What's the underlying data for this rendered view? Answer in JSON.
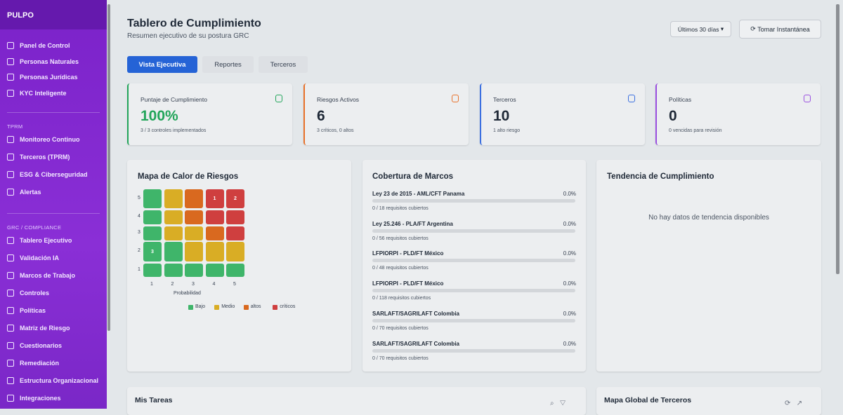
{
  "sidebar": {
    "brand": "PULPO",
    "groups": [
      {
        "items": [
          "Panel de Control",
          "Personas Naturales",
          "Personas Jurídicas",
          "KYC Inteligente"
        ]
      },
      {
        "section": "TPRM",
        "items": [
          "Monitoreo Continuo",
          "Terceros (TPRM)",
          "ESG & Ciberseguridad",
          "Alertas"
        ]
      },
      {
        "section": "GRC / COMPLIANCE",
        "items": [
          "Tablero Ejecutivo",
          "Validación IA",
          "Marcos de Trabajo",
          "Controles",
          "Políticas",
          "Matriz de Riesgo",
          "Cuestionarios",
          "Remediación",
          "Estructura Organizacional",
          "Integraciones"
        ]
      }
    ]
  },
  "header": {
    "title": "Tablero de Cumplimiento",
    "subtitle": "Resumen ejecutivo de su postura GRC",
    "period": "Últimos 30 días",
    "action": "Tomar Instantánea"
  },
  "tabs": [
    "Vista Ejecutiva",
    "Reportes",
    "Terceros"
  ],
  "kpis": [
    {
      "label": "Puntaje de Cumplimiento",
      "value": "100%",
      "note": "3 / 3 controles implementados",
      "color": "#22a55a"
    },
    {
      "label": "Riesgos Activos",
      "value": "6",
      "note": "3 críticos, 0 altos",
      "color": "#e8712a"
    },
    {
      "label": "Terceros",
      "value": "10",
      "note": "1 alto riesgo",
      "color": "#3b6fe0"
    },
    {
      "label": "Políticas",
      "value": "0",
      "note": "0 vencidas para revisión",
      "color": "#9a4fe0"
    }
  ],
  "heatmap": {
    "title": "Mapa de Calor de Riesgos",
    "rows": [
      "5",
      "4",
      "3",
      "2",
      "1"
    ],
    "cols": [
      "1",
      "2",
      "3",
      "4",
      "5"
    ],
    "x_label": "Probabilidad",
    "legend": [
      {
        "name": "Bajo",
        "color": "#3fb56a"
      },
      {
        "name": "Medio",
        "color": "#d9ad25"
      },
      {
        "name": "altos",
        "color": "#d9691f"
      },
      {
        "name": "críticos",
        "color": "#cf3f3f"
      }
    ],
    "levels": [
      [
        0,
        1,
        2,
        3,
        3
      ],
      [
        0,
        1,
        2,
        3,
        3
      ],
      [
        0,
        1,
        1,
        2,
        3
      ],
      [
        0,
        0,
        1,
        1,
        1
      ],
      [
        0,
        0,
        0,
        0,
        0
      ]
    ],
    "counts": [
      [
        null,
        null,
        null,
        "1",
        "2"
      ],
      [
        null,
        null,
        null,
        null,
        null
      ],
      [
        null,
        null,
        null,
        null,
        null
      ],
      [
        "3",
        null,
        null,
        null,
        null
      ],
      [
        null,
        null,
        null,
        null,
        null
      ]
    ]
  },
  "coverage": {
    "title": "Cobertura de Marcos",
    "items": [
      {
        "name": "Ley 23 de 2015 - AML/CFT Panama",
        "pct": "0.0%",
        "note": "0 / 18 requisitos cubiertos"
      },
      {
        "name": "Ley 25.246 - PLA/FT Argentina",
        "pct": "0.0%",
        "note": "0 / 56 requisitos cubiertos"
      },
      {
        "name": "LFPIORPI - PLD/FT México",
        "pct": "0.0%",
        "note": "0 / 48 requisitos cubiertos"
      },
      {
        "name": "LFPIORPI - PLD/FT México",
        "pct": "0.0%",
        "note": "0 / 118 requisitos cubiertos"
      },
      {
        "name": "SARLAFT/SAGRILAFT Colombia",
        "pct": "0.0%",
        "note": "0 / 70 requisitos cubiertos"
      },
      {
        "name": "SARLAFT/SAGRILAFT Colombia",
        "pct": "0.0%",
        "note": "0 / 70 requisitos cubiertos"
      }
    ]
  },
  "trend": {
    "title": "Tendencia de Cumplimiento",
    "empty": "No hay datos de tendencia disponibles"
  },
  "tasks": {
    "title": "Mis Tareas"
  },
  "map": {
    "title": "Mapa Global de Terceros"
  }
}
